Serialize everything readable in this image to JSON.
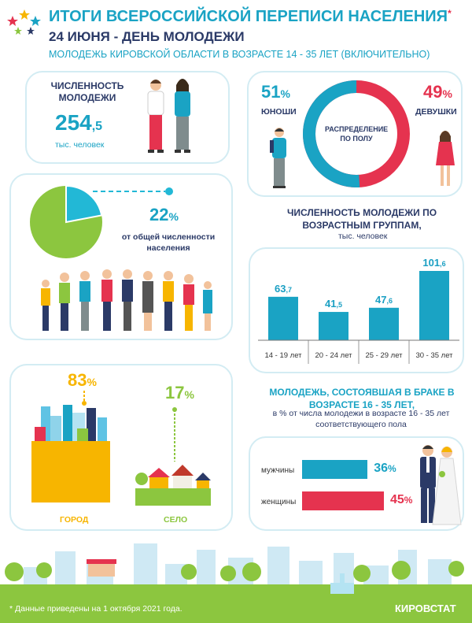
{
  "header": {
    "title": "ИТОГИ ВСЕРОССИЙСКОЙ ПЕРЕПИСИ НАСЕЛЕНИЯ",
    "title_mark": "*",
    "subtitle": "24 ИЮНЯ - ДЕНЬ МОЛОДЕЖИ",
    "note": "МОЛОДЕЖЬ КИРОВСКОЙ ОБЛАСТИ В ВОЗРАСТЕ 14 - 35 ЛЕТ (ВКЛЮЧИТЕЛЬНО)"
  },
  "youth_count": {
    "label": "ЧИСЛЕННОСТЬ МОЛОДЕЖИ",
    "value_main": "254",
    "value_dec": ",5",
    "unit": "тыс. человек"
  },
  "gender": {
    "male_pct": "51",
    "male_label": "ЮНОШИ",
    "female_pct": "49",
    "female_label": "ДЕВУШКИ",
    "center_label": "РАСПРЕДЕЛЕНИЕ ПО ПОЛУ",
    "pct_sign": "%",
    "male_color": "#1aa3c4",
    "female_color": "#e5334f"
  },
  "share": {
    "value": "22",
    "pct_sign": "%",
    "label": "от общей численности населения",
    "fraction": 0.22,
    "slice_color": "#22b8d6",
    "rest_color": "#8cc63f"
  },
  "age_groups": {
    "title": "ЧИСЛЕННОСТЬ МОЛОДЕЖИ ПО ВОЗРАСТНЫМ ГРУППАМ,",
    "unit": "тыс. человек"
  },
  "chart_data": {
    "type": "bar",
    "categories": [
      "14 - 19 лет",
      "20 - 24 лет",
      "25 - 29 лет",
      "30 - 35 лет"
    ],
    "values": [
      63.7,
      41.5,
      47.6,
      101.6
    ],
    "labels_main": [
      "63",
      "41",
      "47",
      "101"
    ],
    "labels_dec": [
      ",7",
      ",5",
      ",6",
      ",6"
    ],
    "color": "#1aa3c4"
  },
  "urban_rural": {
    "city_value": "83",
    "city_label": "ГОРОД",
    "village_value": "17",
    "village_label": "СЕЛО",
    "pct_sign": "%",
    "city_color": "#f7b500",
    "village_color": "#8cc63f"
  },
  "marriage": {
    "title": "МОЛОДЕЖЬ, СОСТОЯВШАЯ В БРАКЕ В ВОЗРАСТЕ 16 - 35 ЛЕТ,",
    "subtitle": "в % от числа молодежи в возрасте 16 - 35 лет соответствующего пола",
    "men_label": "мужчины",
    "men_value": "36",
    "women_label": "женщины",
    "women_value": "45",
    "pct_sign": "%",
    "men_fraction": 0.36,
    "women_fraction": 0.45
  },
  "footer": {
    "note": "* Данные приведены на 1 октября 2021 года.",
    "brand": "КИРОВСТАТ"
  }
}
